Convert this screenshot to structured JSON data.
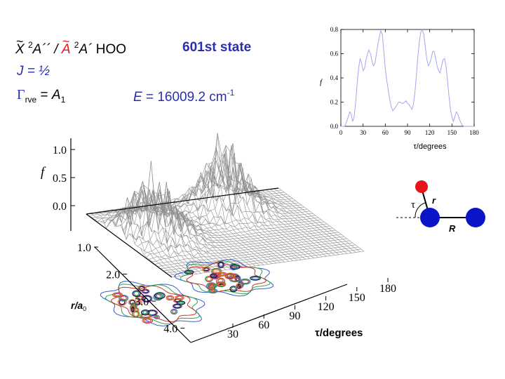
{
  "header": {
    "state1_symbol": "X",
    "state1_superscript": "2",
    "state1_label": "A´´",
    "separator": "/",
    "state2_symbol": "A",
    "state2_superscript": "2",
    "state2_label": "A´",
    "molecule": "HOO",
    "state_index": "601st state",
    "j_label": "J = ½",
    "gamma_symbol": "Γ",
    "gamma_subscript": "rve",
    "gamma_equals": " = ",
    "gamma_value": "A",
    "gamma_value_subscript": "1",
    "energy_label": "E",
    "energy_value": " = 16009.2 cm",
    "energy_exponent": "-1"
  },
  "molecule_diagram": {
    "tau_label": "τ",
    "r_label": "r",
    "R_label": "R",
    "colors": {
      "hydrogen": "#e8141c",
      "oxygen": "#0a14c8",
      "lines": "#000000"
    }
  },
  "chart_data": [
    {
      "type": "line",
      "panel": "top-right inset",
      "xlabel": "τ/degrees",
      "ylabel": "f",
      "xlim": [
        0,
        180
      ],
      "ylim": [
        0,
        0.8
      ],
      "xticks": [
        "0",
        "30",
        "60",
        "90",
        "120",
        "150",
        "180"
      ],
      "yticks": [
        "0.0",
        "0.2",
        "0.4",
        "0.6",
        "0.8"
      ],
      "line_color": "#a6a6f0",
      "series": [
        {
          "x": [
            0,
            5,
            8,
            10,
            12,
            14,
            16,
            18,
            20,
            22,
            24,
            26,
            28,
            30,
            32,
            34,
            36,
            38,
            40,
            42,
            44,
            46,
            48,
            50,
            52,
            54,
            56,
            58,
            60,
            62,
            64,
            66,
            68,
            70,
            72,
            74,
            76,
            78,
            80,
            82,
            84,
            86,
            88,
            90,
            92,
            94,
            96,
            98,
            100,
            102,
            104,
            106,
            108,
            110,
            112,
            114,
            116,
            118,
            120,
            122,
            124,
            126,
            128,
            130,
            132,
            134,
            136,
            138,
            140,
            142,
            144,
            146,
            148,
            150,
            152,
            154,
            156,
            158,
            160,
            162,
            164,
            166,
            168,
            170,
            172,
            175,
            180
          ],
          "y": [
            0.0,
            0.0,
            0.04,
            0.08,
            0.12,
            0.1,
            0.04,
            0.08,
            0.2,
            0.35,
            0.48,
            0.56,
            0.52,
            0.46,
            0.48,
            0.55,
            0.6,
            0.63,
            0.6,
            0.54,
            0.5,
            0.52,
            0.6,
            0.68,
            0.74,
            0.79,
            0.76,
            0.62,
            0.48,
            0.38,
            0.3,
            0.22,
            0.16,
            0.13,
            0.14,
            0.16,
            0.18,
            0.2,
            0.2,
            0.19,
            0.19,
            0.2,
            0.21,
            0.19,
            0.18,
            0.16,
            0.14,
            0.18,
            0.28,
            0.42,
            0.58,
            0.7,
            0.78,
            0.8,
            0.76,
            0.66,
            0.56,
            0.5,
            0.52,
            0.56,
            0.62,
            0.62,
            0.56,
            0.5,
            0.46,
            0.44,
            0.5,
            0.55,
            0.56,
            0.5,
            0.38,
            0.25,
            0.14,
            0.08,
            0.04,
            0.08,
            0.12,
            0.1,
            0.06,
            0.03,
            0.01,
            0.0,
            0.0,
            0.0,
            0.0,
            0.0,
            0.0
          ]
        }
      ]
    },
    {
      "type": "surface",
      "panel": "main 3D plot",
      "xlabel": "τ/degrees",
      "ylabel": "r/a",
      "ylabel_subscript": "0",
      "zlabel": "f",
      "x_ticks": [
        "30",
        "60",
        "90",
        "120",
        "150",
        "180"
      ],
      "y_ticks": [
        "1.0",
        "2.0",
        "3.0",
        "4.0"
      ],
      "z_ticks": [
        "0.0",
        "0.5",
        "1.0"
      ],
      "xlim": [
        30,
        180
      ],
      "ylim": [
        1.0,
        4.0
      ],
      "zlim": [
        0.0,
        1.0
      ],
      "lobes": [
        {
          "tau_range": [
            30,
            80
          ],
          "r_range": [
            1.5,
            3.0
          ],
          "peak_f": 0.95
        },
        {
          "tau_range": [
            100,
            150
          ],
          "r_range": [
            1.0,
            2.2
          ],
          "peak_f": 1.05
        }
      ],
      "mesh_color": "#909090",
      "contour_colors": [
        "#3a5fd0",
        "#2aa84a",
        "#d03030",
        "#e08a20",
        "#9a3aa0",
        "#000000"
      ]
    }
  ]
}
